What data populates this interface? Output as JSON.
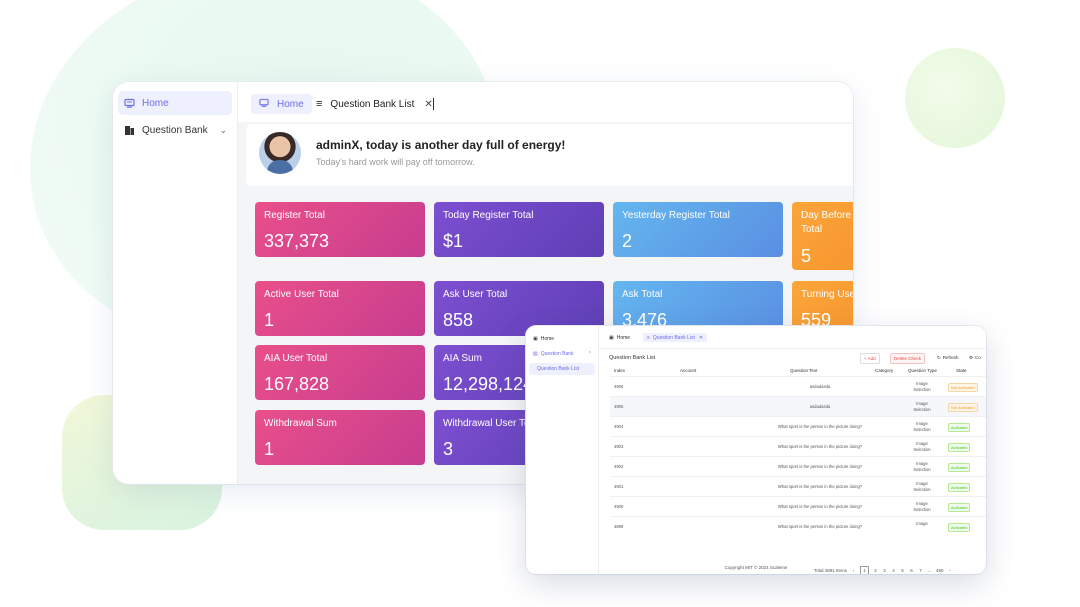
{
  "sidebar": {
    "items": [
      {
        "label": "Home",
        "icon": "home-icon"
      },
      {
        "label": "Question Bank",
        "icon": "question-bank-icon"
      }
    ]
  },
  "tabs": {
    "home": "Home",
    "question_bank_list": "Question Bank List"
  },
  "welcome": {
    "title": "adminX, today is another day full of energy!",
    "subtitle": "Today's hard work will pay off tomorrow."
  },
  "cards": [
    {
      "label": "Register Total",
      "value": "337,373",
      "color": "#e0478c"
    },
    {
      "label": "Today Register Total",
      "value": "$1",
      "color": "#6a47c8"
    },
    {
      "label": "Yesterday Register Total",
      "value": "2",
      "color": "#5ea4ea"
    },
    {
      "label": "Day Before Y",
      "label2": "Total",
      "value": "5",
      "color": "#f99a30"
    },
    {
      "label": "Active User Total",
      "value": "1",
      "color": "#e0478c"
    },
    {
      "label": "Ask User Total",
      "value": "858",
      "color": "#6a47c8"
    },
    {
      "label": "Ask Total",
      "value": "3,476",
      "color": "#5ea4ea"
    },
    {
      "label": "Turning Use",
      "value": "559",
      "color": "#f99a30"
    },
    {
      "label": "AIA User Total",
      "value": "167,828",
      "color": "#e0478c"
    },
    {
      "label": "AIA Sum",
      "value": "12,298,124",
      "color": "#6a47c8"
    },
    {
      "label": "Withdrawal Sum",
      "value": "1",
      "color": "#e0478c"
    },
    {
      "label": "Withdrawal User To",
      "value": "3",
      "color": "#6a47c8"
    }
  ],
  "window2": {
    "sidebar": {
      "home": "Home",
      "question_bank": "Question Bank",
      "question_bank_list": "Question Bank List"
    },
    "tabs": {
      "home": "Home",
      "qbl": "Question Bank List"
    },
    "title": "Question Bank List",
    "buttons": {
      "add": "+ Add",
      "delete": "Delete Check",
      "refresh": "Refresh",
      "columns": "Co"
    },
    "columns": [
      "Index",
      "Account",
      "Question Text",
      "Category",
      "Question Type",
      "State"
    ],
    "rows": [
      {
        "index": "4906",
        "text": "asdadasda",
        "type": "Image Selection",
        "state": "Not Activated",
        "state_kind": "dis"
      },
      {
        "index": "4905",
        "text": "asdadasda",
        "type": "Image Selection",
        "state": "Not Activated",
        "state_kind": "dis"
      },
      {
        "index": "4904",
        "text": "What sport is the person in the picture doing?",
        "type": "Image Selection",
        "state": "Activated",
        "state_kind": "en"
      },
      {
        "index": "4903",
        "text": "What sport is the person in the picture doing?",
        "type": "Image Selection",
        "state": "Activated",
        "state_kind": "en"
      },
      {
        "index": "4902",
        "text": "What sport is the person in the picture doing?",
        "type": "Image Selection",
        "state": "Activated",
        "state_kind": "en"
      },
      {
        "index": "4901",
        "text": "What sport is the person in the picture doing?",
        "type": "Image Selection",
        "state": "Activated",
        "state_kind": "en"
      },
      {
        "index": "4900",
        "text": "What sport is the person in the picture doing?",
        "type": "Image Selection",
        "state": "Activated",
        "state_kind": "en"
      },
      {
        "index": "4899",
        "text": "What sport is the person in the picture doing?",
        "type": "Image",
        "state": "Activated",
        "state_kind": "en"
      }
    ],
    "pager": {
      "total": "Total 4891 Items",
      "pages": [
        "1",
        "2",
        "3",
        "4",
        "5",
        "6",
        "7",
        "...",
        "490"
      ],
      "current": "1"
    },
    "footer": "Copyright MIT © 2024 Scaleme"
  }
}
